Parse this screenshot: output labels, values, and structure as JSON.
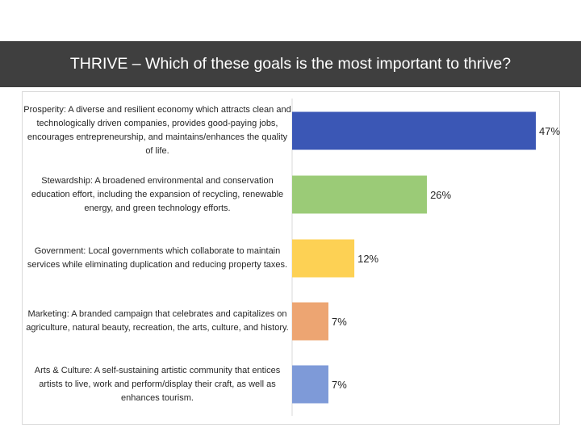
{
  "header": {
    "title": "THRIVE – Which of these goals is the most important to thrive?"
  },
  "chart_data": {
    "type": "bar",
    "orientation": "horizontal",
    "title": "THRIVE – Which of these goals is the most important to thrive?",
    "categories": [
      "Prosperity:  A diverse and resilient economy which attracts clean and technologically driven companies, provides good-paying jobs, encourages entrepreneurship, and maintains/enhances the quality of life.",
      "Stewardship: A broadened environmental and conservation education effort, including the expansion of recycling, renewable energy, and green technology efforts.",
      "Government: Local governments which collaborate to maintain services while eliminating duplication and reducing property taxes.",
      "Marketing: A branded campaign that celebrates and capitalizes on agriculture, natural beauty, recreation, the arts, culture, and history.",
      "Arts & Culture: A self-sustaining artistic community that entices artists to live, work and perform/display their craft, as well as enhances tourism."
    ],
    "values": [
      47,
      26,
      12,
      7,
      7
    ],
    "value_labels": [
      "47%",
      "26%",
      "12%",
      "7%",
      "7%"
    ],
    "xlim": [
      0,
      47
    ],
    "bar_colors": [
      "#3b57b5",
      "#9bcb77",
      "#fdd154",
      "#eda572",
      "#7e9ad8"
    ],
    "grid": false,
    "legend": "none"
  }
}
